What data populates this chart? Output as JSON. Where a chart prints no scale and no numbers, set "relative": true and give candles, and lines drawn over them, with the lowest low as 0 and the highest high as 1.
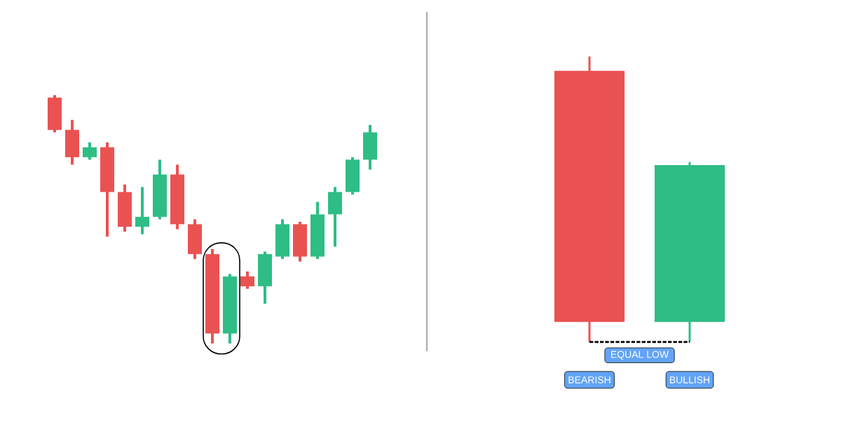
{
  "chart_data": [
    {
      "type": "candlestick",
      "relative": true,
      "categories": [
        null,
        null,
        null,
        null,
        null,
        null,
        null,
        null,
        null,
        null,
        null,
        null,
        null,
        null,
        null,
        null,
        null,
        null,
        null
      ],
      "ohlc": [
        [
          0.99,
          1,
          0.85,
          0.86
        ],
        [
          0.86,
          0.9,
          0.72,
          0.75
        ],
        [
          0.75,
          0.81,
          0.74,
          0.79
        ],
        [
          0.79,
          0.81,
          0.43,
          0.61
        ],
        [
          0.61,
          0.64,
          0.45,
          0.47
        ],
        [
          0.47,
          0.63,
          0.44,
          0.51
        ],
        [
          0.51,
          0.74,
          0.5,
          0.68
        ],
        [
          0.68,
          0.72,
          0.46,
          0.48
        ],
        [
          0.48,
          0.5,
          0.34,
          0.36
        ],
        [
          0.36,
          0.38,
          0,
          0.04
        ],
        [
          0.04,
          0.28,
          0,
          0.27
        ],
        [
          0.27,
          0.29,
          0.22,
          0.23
        ],
        [
          0.23,
          0.37,
          0.16,
          0.36
        ],
        [
          0.35,
          0.5,
          0.34,
          0.48
        ],
        [
          0.48,
          0.49,
          0.33,
          0.35
        ],
        [
          0.35,
          0.57,
          0.34,
          0.52
        ],
        [
          0.52,
          0.63,
          0.39,
          0.61
        ],
        [
          0.61,
          0.75,
          0.6,
          0.74
        ],
        [
          0.74,
          0.88,
          0.7,
          0.85
        ]
      ],
      "colors": [
        "#ea5252",
        "#ea5252",
        "#2ebd85",
        "#ea5252",
        "#ea5252",
        "#2ebd85",
        "#2ebd85",
        "#ea5252",
        "#ea5252",
        "#ea5252",
        "#2ebd85",
        "#ea5252",
        "#2ebd85",
        "#2ebd85",
        "#ea5252",
        "#2ebd85",
        "#2ebd85",
        "#2ebd85",
        "#2ebd85"
      ]
    },
    {
      "type": "candlestick",
      "relative": true,
      "categories": [
        "BEARISH",
        "BULLISH"
      ],
      "ohlc": [
        [
          0.95,
          1,
          0,
          0.07
        ],
        [
          0.07,
          0.63,
          0,
          0.62
        ]
      ],
      "colors": [
        "#ea5252",
        "#2ebd85"
      ],
      "ref_lines": [
        {
          "axis": "y",
          "value": 0,
          "label": "EQUAL LOW",
          "color": "#000000",
          "line_style": "dashed"
        }
      ]
    }
  ]
}
